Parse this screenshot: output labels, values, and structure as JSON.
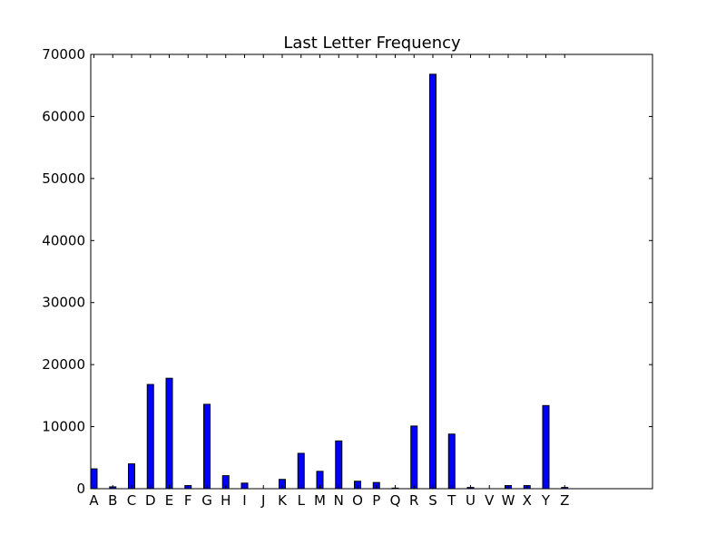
{
  "chart_data": {
    "type": "bar",
    "title": "Last Letter Frequency",
    "xlabel": "",
    "ylabel": "",
    "ylim": [
      0,
      70000
    ],
    "yticks": [
      0,
      10000,
      20000,
      30000,
      40000,
      50000,
      60000,
      70000
    ],
    "ytick_labels": [
      "0",
      "10000",
      "20000",
      "30000",
      "40000",
      "50000",
      "60000",
      "70000"
    ],
    "grid": false,
    "bar_color": "#0000ff",
    "categories": [
      "A",
      "B",
      "C",
      "D",
      "E",
      "F",
      "G",
      "H",
      "I",
      "J",
      "K",
      "L",
      "M",
      "N",
      "O",
      "P",
      "Q",
      "R",
      "S",
      "T",
      "U",
      "V",
      "W",
      "X",
      "Y",
      "Z"
    ],
    "values": [
      3200,
      300,
      4000,
      16800,
      17800,
      500,
      13600,
      2100,
      900,
      0,
      1500,
      5700,
      2800,
      7700,
      1200,
      1000,
      100,
      10100,
      66800,
      8800,
      200,
      0,
      500,
      500,
      13400,
      200
    ]
  }
}
